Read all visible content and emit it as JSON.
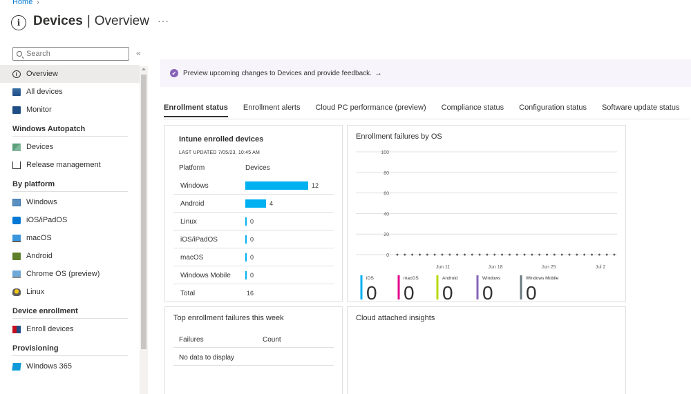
{
  "breadcrumb": {
    "home": "Home"
  },
  "header": {
    "title": "Devices",
    "separator": "|",
    "subtitle": "Overview",
    "more": "···"
  },
  "sidebar": {
    "search_placeholder": "Search",
    "collapse_glyph": "«",
    "items_top": [
      {
        "label": "Overview",
        "icon": "info-circle-icon",
        "active": true
      },
      {
        "label": "All devices",
        "icon": "devices-icon"
      },
      {
        "label": "Monitor",
        "icon": "monitor-icon"
      }
    ],
    "sections": [
      {
        "title": "Windows Autopatch",
        "items": [
          {
            "label": "Devices",
            "icon": "autopatch-devices-icon"
          },
          {
            "label": "Release management",
            "icon": "release-icon"
          }
        ]
      },
      {
        "title": "By platform",
        "items": [
          {
            "label": "Windows",
            "icon": "windows-icon"
          },
          {
            "label": "iOS/iPadOS",
            "icon": "ios-icon"
          },
          {
            "label": "macOS",
            "icon": "macos-icon"
          },
          {
            "label": "Android",
            "icon": "android-icon"
          },
          {
            "label": "Chrome OS (preview)",
            "icon": "chrome-os-icon"
          },
          {
            "label": "Linux",
            "icon": "linux-icon"
          }
        ]
      },
      {
        "title": "Device enrollment",
        "items": [
          {
            "label": "Enroll devices",
            "icon": "enroll-icon"
          }
        ]
      },
      {
        "title": "Provisioning",
        "items": [
          {
            "label": "Windows 365",
            "icon": "windows-365-icon"
          }
        ]
      }
    ]
  },
  "banner": {
    "text": "Preview upcoming changes to Devices and provide feedback.",
    "arrow": "→",
    "icon": "feedback-icon"
  },
  "tabs": [
    {
      "label": "Enrollment status",
      "active": true
    },
    {
      "label": "Enrollment alerts"
    },
    {
      "label": "Cloud PC performance (preview)"
    },
    {
      "label": "Compliance status"
    },
    {
      "label": "Configuration status"
    },
    {
      "label": "Software update status"
    }
  ],
  "enrolled": {
    "title": "Intune enrolled devices",
    "updated": "LAST UPDATED 7/05/23, 10:45 AM",
    "col_platform": "Platform",
    "col_devices": "Devices",
    "max": 12,
    "rows": [
      {
        "platform": "Windows",
        "devices": 12
      },
      {
        "platform": "Android",
        "devices": 4
      },
      {
        "platform": "Linux",
        "devices": 0
      },
      {
        "platform": "iOS/iPadOS",
        "devices": 0
      },
      {
        "platform": "macOS",
        "devices": 0
      },
      {
        "platform": "Windows Mobile",
        "devices": 0
      }
    ],
    "total_label": "Total",
    "total": 16
  },
  "chart_data": {
    "type": "line",
    "title": "Enrollment failures by OS",
    "ylim": [
      0,
      100
    ],
    "yticks": [
      0,
      20,
      40,
      60,
      80,
      100
    ],
    "xticks": [
      "Jun 11",
      "Jun 18",
      "Jun 25",
      "Jul 2"
    ],
    "points_per_series": 30,
    "series": [
      {
        "name": "iOS",
        "total": 0,
        "color": "#00b0f0"
      },
      {
        "name": "macOS",
        "total": 0,
        "color": "#e3008c"
      },
      {
        "name": "Android",
        "total": 0,
        "color": "#bad80a"
      },
      {
        "name": "Windows",
        "total": 0,
        "color": "#8764b8"
      },
      {
        "name": "Windows Mobile",
        "total": 0,
        "color": "#69797e"
      }
    ]
  },
  "topfail": {
    "title": "Top enrollment failures this week",
    "col_failures": "Failures",
    "col_count": "Count",
    "empty": "No data to display"
  },
  "insights": {
    "title": "Cloud attached insights"
  }
}
